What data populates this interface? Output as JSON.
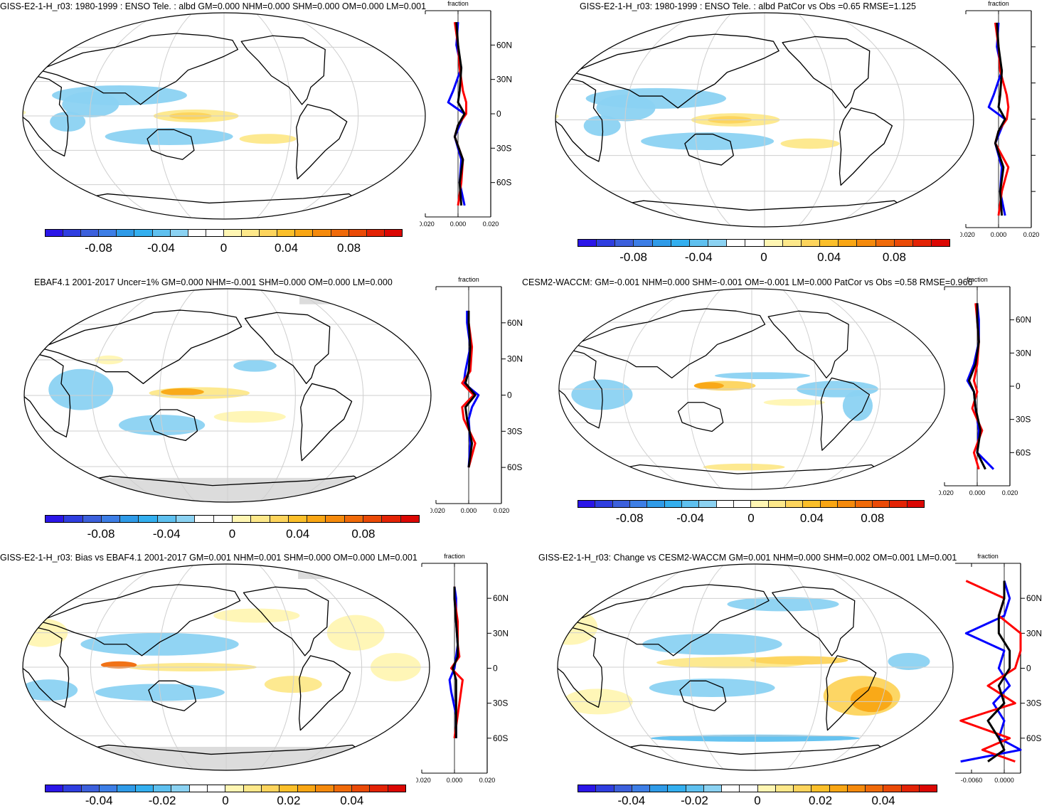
{
  "colorscale": {
    "enso": [
      "#2b16e8",
      "#2f3ee0",
      "#3c60dc",
      "#3d7ee6",
      "#2f9be8",
      "#33afef",
      "#5ec0ef",
      "#8bd2f2",
      "#ffffff",
      "#ffffff",
      "#fff6b3",
      "#fde88a",
      "#fdd45c",
      "#fbbf2a",
      "#f9a614",
      "#f58a0c",
      "#f06a09",
      "#ea4a07",
      "#e32305",
      "#db0703"
    ],
    "colors_note": "blue-white-yellow-red"
  },
  "panels": [
    {
      "title": "GISS-E2-1-H_r03: 1980-1999 : ENSO Tele. : albd GM=0.000 NHM=0.000 SHM=0.000 OM=0.000 LM=0.001",
      "colorbar_ticks": [
        "-0.08",
        "-0.04",
        "0",
        "0.04",
        "0.08"
      ],
      "profile_header": "fraction",
      "profile_xticks": [
        "-0.020",
        "0.000",
        "0.020"
      ],
      "profile_yticks": [
        "60N",
        "30N",
        "0",
        "30S",
        "60S"
      ],
      "grey_land": false
    },
    {
      "title": "GISS-E2-1-H_r03: 1980-1999 : ENSO Tele. : albd PatCor vs Obs =0.65 RMSE=1.125",
      "colorbar_ticks": [
        "-0.08",
        "-0.04",
        "0",
        "0.04",
        "0.08"
      ],
      "profile_header": "fraction",
      "profile_xticks": [
        "-0.020",
        "0.000",
        "0.020"
      ],
      "profile_yticks": [
        "",
        "",
        "",
        "",
        ""
      ],
      "grey_land": false
    },
    {
      "title": "EBAF4.1 2001-2017 Uncer=1% GM=0.000 NHM=-0.001 SHM=0.000 OM=0.000 LM=0.000",
      "colorbar_ticks": [
        "-0.08",
        "-0.04",
        "0",
        "0.04",
        "0.08"
      ],
      "profile_header": "fraction",
      "profile_xticks": [
        "-0.020",
        "0.000",
        "0.020"
      ],
      "profile_yticks": [
        "60N",
        "30N",
        "0",
        "30S",
        "60S"
      ],
      "grey_land": true
    },
    {
      "title": "CESM2-WACCM: GM=-0.001 NHM=0.000 SHM=-0.001 OM=-0.001 LM=0.000 PatCor vs Obs =0.58 RMSE=0.966",
      "colorbar_ticks": [
        "-0.08",
        "-0.04",
        "0",
        "0.04",
        "0.08"
      ],
      "profile_header": "fraction",
      "profile_xticks": [
        "-0.020",
        "0.000",
        "0.020"
      ],
      "profile_yticks": [
        "60N",
        "30N",
        "0",
        "30S",
        "60S"
      ],
      "grey_land": false
    },
    {
      "title": "GISS-E2-1-H_r03: Bias vs EBAF4.1 2001-2017 GM=0.001 NHM=0.001 SHM=0.000 OM=0.000 LM=0.001",
      "colorbar_ticks": [
        "-0.04",
        "-0.02",
        "0",
        "0.02",
        "0.04"
      ],
      "profile_header": "fraction",
      "profile_xticks": [
        "-0.020",
        "0.000",
        "0.020"
      ],
      "profile_yticks": [
        "60N",
        "30N",
        "0",
        "30S",
        "60S"
      ],
      "grey_land": true
    },
    {
      "title": "GISS-E2-1-H_r03: Change vs CESM2-WACCM GM=0.001 NHM=0.000 SHM=0.002 OM=0.001 LM=0.001",
      "colorbar_ticks": [
        "-0.04",
        "-0.02",
        "0",
        "0.02",
        "0.04"
      ],
      "profile_header": "fraction",
      "profile_xticks": [
        "-0.0060",
        "0.0000"
      ],
      "profile_yticks": [
        "60N",
        "30N",
        "0",
        "30S",
        "60S"
      ],
      "grey_land": false
    }
  ],
  "chart_data": [
    {
      "type": "heatmap",
      "title": "GISS-E2-1-H_r03: 1980-1999 : ENSO Tele. : albd GM=0.000 NHM=0.000 SHM=0.000 OM=0.000 LM=0.001",
      "colorbar_range": [
        -0.1,
        0.1
      ],
      "zonal_profile": {
        "xlim": [
          -0.02,
          0.02
        ],
        "ylim": [
          -90,
          90
        ],
        "series": [
          {
            "name": "model",
            "color": "#0000ff",
            "lat": [
              -80,
              -60,
              -40,
              -20,
              -10,
              0,
              10,
              20,
              40,
              60,
              80
            ],
            "values": [
              0.004,
              0.001,
              0.002,
              -0.002,
              0.001,
              0.004,
              -0.006,
              -0.003,
              0.002,
              -0.001,
              0.0
            ]
          },
          {
            "name": "obs",
            "color": "#ff0000",
            "lat": [
              -80,
              -60,
              -40,
              -20,
              -10,
              0,
              10,
              20,
              40,
              60,
              80
            ],
            "values": [
              0.0,
              0.002,
              0.003,
              -0.002,
              0.0,
              0.005,
              0.005,
              0.003,
              0.001,
              0.0,
              -0.002
            ]
          },
          {
            "name": "mean",
            "color": "#000000",
            "lat": [
              -80,
              -60,
              -40,
              -20,
              -10,
              0,
              10,
              20,
              40,
              60,
              80
            ],
            "values": [
              0.002,
              0.001,
              0.003,
              -0.002,
              0.0,
              0.004,
              0.0,
              0.001,
              0.002,
              0.0,
              -0.001
            ]
          }
        ]
      }
    },
    {
      "type": "heatmap",
      "title": "GISS-E2-1-H_r03: 1980-1999 : ENSO Tele. : albd PatCor vs Obs =0.65 RMSE=1.125",
      "colorbar_range": [
        -0.1,
        0.1
      ],
      "zonal_profile": {
        "xlim": [
          -0.02,
          0.02
        ],
        "ylim": [
          -90,
          90
        ],
        "series": [
          {
            "name": "model",
            "color": "#0000ff",
            "lat": [
              -80,
              -60,
              -40,
              -20,
              -10,
              0,
              10,
              20,
              40,
              60,
              80
            ],
            "values": [
              0.004,
              0.001,
              0.002,
              -0.002,
              0.001,
              0.004,
              -0.006,
              -0.003,
              0.002,
              -0.001,
              0.0
            ]
          },
          {
            "name": "obs",
            "color": "#ff0000",
            "lat": [
              -80,
              -60,
              -40,
              -20,
              -10,
              0,
              10,
              20,
              40,
              60,
              80
            ],
            "values": [
              0.0,
              0.002,
              0.006,
              -0.002,
              0.0,
              0.005,
              0.006,
              0.005,
              0.001,
              0.0,
              -0.002
            ]
          },
          {
            "name": "mean",
            "color": "#000000",
            "lat": [
              -80,
              -60,
              -40,
              -20,
              -10,
              0,
              10,
              20,
              40,
              60,
              80
            ],
            "values": [
              0.002,
              0.001,
              0.003,
              -0.002,
              0.0,
              0.004,
              0.0,
              0.001,
              0.002,
              0.0,
              -0.001
            ]
          }
        ]
      }
    },
    {
      "type": "heatmap",
      "title": "EBAF4.1 2001-2017 Uncer=1% GM=0.000 NHM=-0.001 SHM=0.000 OM=0.000 LM=0.000",
      "colorbar_range": [
        -0.1,
        0.1
      ],
      "zonal_profile": {
        "xlim": [
          -0.02,
          0.02
        ],
        "ylim": [
          -90,
          90
        ],
        "series": [
          {
            "name": "model",
            "color": "#0000ff",
            "lat": [
              -60,
              -40,
              -20,
              -10,
              0,
              10,
              20,
              40,
              60,
              70
            ],
            "values": [
              0.0,
              0.001,
              0.0,
              0.002,
              0.006,
              -0.003,
              -0.002,
              0.001,
              -0.001,
              -0.001
            ]
          },
          {
            "name": "obs",
            "color": "#ff0000",
            "lat": [
              -60,
              -40,
              -20,
              -10,
              0,
              10,
              20,
              40,
              60,
              70
            ],
            "values": [
              0.0,
              0.004,
              -0.003,
              -0.004,
              0.003,
              -0.004,
              0.001,
              0.002,
              0.0,
              0.0
            ]
          },
          {
            "name": "mean",
            "color": "#000000",
            "lat": [
              -60,
              -40,
              -20,
              -10,
              0,
              10,
              20,
              40,
              60,
              70
            ],
            "values": [
              0.0,
              0.002,
              -0.001,
              -0.002,
              0.004,
              -0.002,
              0.0,
              0.001,
              0.0,
              0.0
            ]
          }
        ]
      }
    },
    {
      "type": "heatmap",
      "title": "CESM2-WACCM: GM=-0.001 NHM=0.000 SHM=-0.001 OM=-0.001 LM=0.000 PatCor vs Obs =0.58 RMSE=0.966",
      "colorbar_range": [
        -0.1,
        0.1
      ],
      "zonal_profile": {
        "xlim": [
          -0.02,
          0.02
        ],
        "ylim": [
          -90,
          90
        ],
        "series": [
          {
            "name": "model",
            "color": "#0000ff",
            "lat": [
              -75,
              -60,
              -40,
              -20,
              -5,
              5,
              20,
              40,
              60,
              75
            ],
            "values": [
              0.01,
              0.0,
              0.001,
              -0.001,
              -0.002,
              -0.006,
              -0.002,
              0.001,
              0.001,
              0.0
            ]
          },
          {
            "name": "obs",
            "color": "#ff0000",
            "lat": [
              -75,
              -60,
              -40,
              -20,
              -5,
              5,
              20,
              40,
              60,
              75
            ],
            "values": [
              0.001,
              -0.002,
              0.003,
              -0.003,
              0.0,
              -0.002,
              0.0,
              0.001,
              0.0,
              -0.001
            ]
          },
          {
            "name": "mean",
            "color": "#000000",
            "lat": [
              -75,
              -60,
              -40,
              -20,
              -5,
              5,
              20,
              40,
              60,
              75
            ],
            "values": [
              0.005,
              0.0,
              0.002,
              -0.001,
              -0.002,
              -0.005,
              -0.001,
              0.001,
              0.0,
              0.0
            ]
          }
        ]
      }
    },
    {
      "type": "heatmap",
      "title": "GISS-E2-1-H_r03: Bias vs EBAF4.1 2001-2017 GM=0.001 NHM=0.001 SHM=0.000 OM=0.000 LM=0.001",
      "colorbar_range": [
        -0.05,
        0.05
      ],
      "zonal_profile": {
        "xlim": [
          -0.02,
          0.02
        ],
        "ylim": [
          -90,
          90
        ],
        "series": [
          {
            "name": "model",
            "color": "#0000ff",
            "lat": [
              -60,
              -40,
              -20,
              -10,
              0,
              10,
              20,
              40,
              60,
              70
            ],
            "values": [
              0.001,
              0.001,
              -0.002,
              -0.003,
              0.0,
              0.001,
              0.002,
              0.001,
              0.001,
              0.0
            ]
          },
          {
            "name": "obs",
            "color": "#ff0000",
            "lat": [
              -60,
              -40,
              -20,
              -10,
              0,
              10,
              20,
              40,
              60,
              70
            ],
            "values": [
              0.0,
              0.002,
              0.004,
              0.005,
              -0.002,
              0.003,
              0.002,
              0.002,
              0.0,
              0.0
            ]
          },
          {
            "name": "mean",
            "color": "#000000",
            "lat": [
              -60,
              -40,
              -20,
              -10,
              0,
              10,
              20,
              40,
              60,
              70
            ],
            "values": [
              0.001,
              0.001,
              0.001,
              0.001,
              -0.001,
              0.002,
              0.002,
              0.001,
              0.0,
              0.0
            ]
          }
        ]
      }
    },
    {
      "type": "heatmap",
      "title": "GISS-E2-1-H_r03: Change vs CESM2-WACCM GM=0.001 NHM=0.000 SHM=0.002 OM=0.001 LM=0.001",
      "colorbar_range": [
        -0.05,
        0.05
      ],
      "zonal_profile": {
        "xlim": [
          -0.009,
          0.003
        ],
        "ylim": [
          -90,
          90
        ],
        "series": [
          {
            "name": "model",
            "color": "#0000ff",
            "lat": [
              -80,
              -70,
              -60,
              -45,
              -30,
              -15,
              0,
              15,
              30,
              45,
              60,
              75
            ],
            "values": [
              -0.008,
              0.003,
              -0.001,
              0.0,
              -0.002,
              0.001,
              -0.001,
              0.0,
              -0.007,
              0.0,
              0.001,
              0.0
            ]
          },
          {
            "name": "obs",
            "color": "#ff0000",
            "lat": [
              -80,
              -70,
              -60,
              -45,
              -30,
              -15,
              0,
              15,
              30,
              45,
              60,
              75
            ],
            "values": [
              0.002,
              -0.004,
              0.001,
              -0.008,
              0.002,
              -0.003,
              0.002,
              0.003,
              0.003,
              -0.001,
              0.0,
              -0.007
            ]
          },
          {
            "name": "mean",
            "color": "#000000",
            "lat": [
              -80,
              -70,
              -60,
              -45,
              -30,
              -15,
              0,
              15,
              30,
              45,
              60,
              75
            ],
            "values": [
              -0.003,
              0.0,
              -0.001,
              -0.003,
              0.0,
              -0.001,
              0.001,
              0.001,
              -0.001,
              -0.001,
              0.0,
              0.0
            ]
          }
        ]
      }
    }
  ]
}
